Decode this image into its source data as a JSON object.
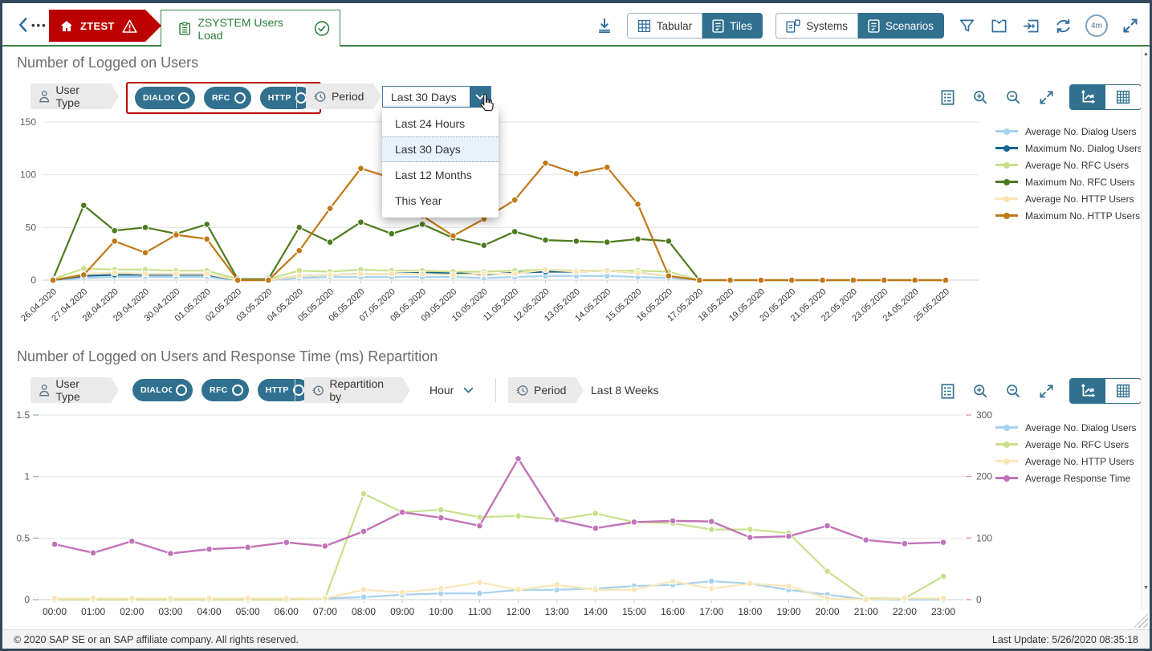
{
  "header": {
    "tabs": [
      {
        "label": "ZTEST",
        "status": "error"
      },
      {
        "label": "ZSYSTEM Users Load",
        "status": "ok"
      }
    ],
    "views": [
      {
        "label": "Tabular",
        "selected": false
      },
      {
        "label": "Tiles",
        "selected": true
      },
      {
        "label": "Systems",
        "selected": false
      },
      {
        "label": "Scenarios",
        "selected": true
      }
    ],
    "refresh_interval_badge": "4m",
    "icons": [
      "back-icon",
      "overflow-icon",
      "home-icon",
      "warning-icon",
      "document-icon",
      "success-icon",
      "download-icon",
      "filter-icon",
      "card-check-icon",
      "card-add-icon",
      "refresh-icon",
      "fullscreen-icon"
    ]
  },
  "colors": {
    "accent_blue": "#31708f",
    "error_red": "#bb0000",
    "success_green": "#3f8545"
  },
  "section1": {
    "title": "Number of Logged on Users",
    "filters": {
      "user_type_label": "User Type",
      "user_types": [
        "DIALOG",
        "RFC",
        "HTTP"
      ],
      "period_label": "Period",
      "period_value": "Last 30 Days",
      "period_options": [
        "Last 24 Hours",
        "Last 30 Days",
        "Last 12 Months",
        "This Year"
      ],
      "period_selected": "Last 30 Days"
    }
  },
  "section2": {
    "title": "Number of Logged on Users and Response Time (ms) Repartition",
    "filters": {
      "user_type_label": "User Type",
      "user_types": [
        "DIALOG",
        "RFC",
        "HTTP"
      ],
      "repartition_label": "Repartition by",
      "repartition_value": "Hour",
      "period_label": "Period",
      "period_value": "Last 8 Weeks"
    }
  },
  "chart_data": [
    {
      "type": "line",
      "title": "Number of Logged on Users",
      "categories": [
        "26.04.2020",
        "27.04.2020",
        "28.04.2020",
        "29.04.2020",
        "30.04.2020",
        "01.05.2020",
        "02.05.2020",
        "03.05.2020",
        "04.05.2020",
        "05.05.2020",
        "06.05.2020",
        "07.05.2020",
        "08.05.2020",
        "09.05.2020",
        "10.05.2020",
        "11.05.2020",
        "12.05.2020",
        "13.05.2020",
        "14.05.2020",
        "15.05.2020",
        "16.05.2020",
        "17.05.2020",
        "18.05.2020",
        "19.05.2020",
        "20.05.2020",
        "21.05.2020",
        "22.05.2020",
        "23.05.2020",
        "24.05.2020",
        "25.05.2020"
      ],
      "xlabel": "",
      "ylabel": "",
      "ylim": [
        0,
        150
      ],
      "yticks": [
        0,
        50,
        100,
        150
      ],
      "grid": true,
      "legend_position": "right",
      "series": [
        {
          "name": "Average No. Dialog Users",
          "color": "#a5d2ee",
          "axis": "left",
          "values": [
            0,
            2,
            3,
            3,
            3,
            3,
            0,
            0,
            2,
            3,
            3,
            3,
            3,
            3,
            2,
            3,
            4,
            4,
            4,
            3,
            2,
            0,
            0,
            0,
            0,
            0,
            0,
            0,
            0,
            0
          ]
        },
        {
          "name": "Maximum No. Dialog Users",
          "color": "#15638f",
          "axis": "left",
          "values": [
            0,
            4,
            5,
            5,
            5,
            5,
            0,
            0,
            4,
            5,
            6,
            6,
            7,
            7,
            5,
            7,
            8,
            8,
            9,
            7,
            4,
            0,
            0,
            0,
            0,
            0,
            0,
            0,
            0,
            0
          ]
        },
        {
          "name": "Average No. RFC Users",
          "color": "#c8e08b",
          "axis": "left",
          "values": [
            1,
            11,
            10,
            10,
            9,
            9,
            1,
            1,
            9,
            8,
            10,
            9,
            9,
            8,
            8,
            9,
            10,
            9,
            9,
            9,
            8,
            0,
            0,
            0,
            0,
            0,
            0,
            0,
            0,
            0
          ]
        },
        {
          "name": "Maximum No. RFC Users",
          "color": "#4e7a1e",
          "axis": "left",
          "values": [
            1,
            71,
            47,
            50,
            44,
            53,
            1,
            1,
            50,
            36,
            55,
            44,
            53,
            40,
            33,
            46,
            38,
            37,
            36,
            39,
            37,
            0,
            0,
            0,
            0,
            0,
            0,
            0,
            0,
            0
          ]
        },
        {
          "name": "Average No. HTTP Users",
          "color": "#f9e6b8",
          "axis": "left",
          "values": [
            0,
            6,
            7,
            6,
            6,
            6,
            0,
            0,
            4,
            5,
            6,
            6,
            6,
            5,
            6,
            6,
            10,
            8,
            9,
            7,
            4,
            0,
            0,
            0,
            0,
            0,
            0,
            0,
            0,
            0
          ]
        },
        {
          "name": "Maximum No. HTTP Users",
          "color": "#c07817",
          "axis": "left",
          "values": [
            0,
            5,
            37,
            26,
            43,
            39,
            0,
            0,
            28,
            68,
            106,
            97,
            61,
            42,
            58,
            76,
            111,
            101,
            107,
            72,
            4,
            0,
            0,
            0,
            0,
            0,
            0,
            0,
            0,
            0
          ]
        }
      ]
    },
    {
      "type": "line",
      "title": "Number of Logged on Users and Response Time (ms) Repartition",
      "categories": [
        "00:00",
        "01:00",
        "02:00",
        "03:00",
        "04:00",
        "05:00",
        "06:00",
        "07:00",
        "08:00",
        "09:00",
        "10:00",
        "11:00",
        "12:00",
        "13:00",
        "14:00",
        "15:00",
        "16:00",
        "17:00",
        "18:00",
        "19:00",
        "20:00",
        "21:00",
        "22:00",
        "23:00"
      ],
      "xlabel": "",
      "ylabel": "",
      "ylim": [
        0,
        1.5
      ],
      "yticks": [
        0,
        0.5,
        1,
        1.5
      ],
      "y2lim": [
        0,
        300
      ],
      "y2ticks": [
        0,
        100,
        200,
        300
      ],
      "grid": true,
      "legend_position": "right",
      "series": [
        {
          "name": "Average No. Dialog Users",
          "color": "#a5d2ee",
          "axis": "left",
          "values": [
            0,
            0,
            0,
            0,
            0,
            0,
            0,
            0.01,
            0.02,
            0.04,
            0.05,
            0.05,
            0.08,
            0.08,
            0.09,
            0.11,
            0.12,
            0.15,
            0.13,
            0.08,
            0.04,
            0,
            0,
            0
          ]
        },
        {
          "name": "Average No. RFC Users",
          "color": "#c8e08b",
          "axis": "left",
          "values": [
            0,
            0,
            0,
            0,
            0,
            0,
            0,
            0.01,
            0.86,
            0.71,
            0.73,
            0.67,
            0.68,
            0.65,
            0.7,
            0.63,
            0.62,
            0.57,
            0.57,
            0.54,
            0.23,
            0.01,
            0.01,
            0.19
          ]
        },
        {
          "name": "Average No. HTTP Users",
          "color": "#f9e6b8",
          "axis": "left",
          "values": [
            0.01,
            0.01,
            0.01,
            0.01,
            0.01,
            0.01,
            0.01,
            0.01,
            0.08,
            0.06,
            0.09,
            0.14,
            0.08,
            0.12,
            0.08,
            0.08,
            0.15,
            0.09,
            0.13,
            0.11,
            0.01,
            0,
            0.01,
            0.01
          ]
        },
        {
          "name": "Average Response Time",
          "color": "#c173b8",
          "axis": "right",
          "values": [
            90,
            76,
            95,
            75,
            82,
            85,
            93,
            87,
            111,
            142,
            133,
            120,
            229,
            130,
            116,
            126,
            128,
            127,
            101,
            103,
            120,
            97,
            91,
            93
          ]
        }
      ]
    }
  ],
  "footer": {
    "copyright": "© 2020 SAP SE or an SAP affiliate company. All rights reserved.",
    "last_update": "Last Update: 5/26/2020 08:35:18"
  }
}
